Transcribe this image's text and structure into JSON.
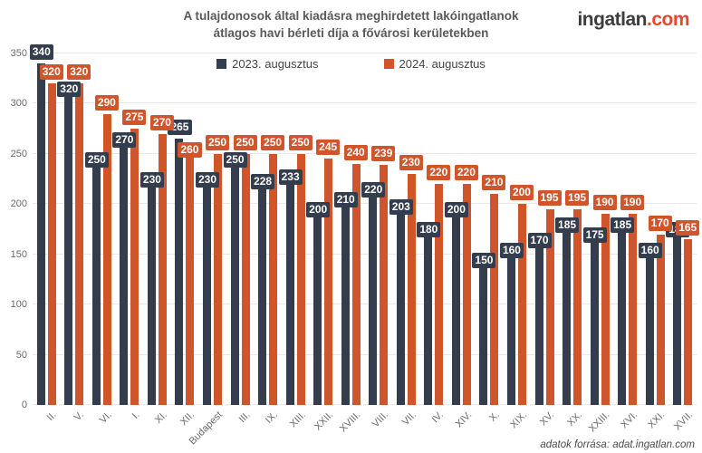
{
  "title": {
    "line1": "A tulajdonosok által kiadásra meghirdetett lakóingatlanok",
    "line2": "átlagos havi bérleti díja a fővárosi kerületekben"
  },
  "logo": {
    "name": "ingatlan",
    "tld": ".com"
  },
  "footer": {
    "source": "adatok forrása: adat.ingatlan.com"
  },
  "chart_data": {
    "type": "bar",
    "title": "A tulajdonosok által kiadásra meghirdetett lakóingatlanok átlagos havi bérleti díja a fővárosi kerületekben",
    "categories": [
      "II.",
      "V.",
      "VI.",
      "I.",
      "XI.",
      "XII.",
      "Budapest",
      "III.",
      "IX.",
      "XIII.",
      "XXII.",
      "XVIII.",
      "VIII.",
      "VII.",
      "IV.",
      "XIV.",
      "X.",
      "XIX.",
      "XV.",
      "XX.",
      "XXIII.",
      "XVI.",
      "XXI.",
      "XVII."
    ],
    "series": [
      {
        "name": "2023. augusztus",
        "color": "#333d4d",
        "values": [
          340,
          320,
          250,
          270,
          230,
          265,
          230,
          250,
          228,
          233,
          200,
          210,
          220,
          203,
          180,
          200,
          150,
          160,
          170,
          185,
          175,
          185,
          160,
          180
        ]
      },
      {
        "name": "2024. augusztus",
        "color": "#d0552b",
        "values": [
          320,
          320,
          290,
          275,
          270,
          260,
          250,
          250,
          250,
          250,
          245,
          240,
          239,
          230,
          220,
          220,
          210,
          200,
          195,
          195,
          190,
          190,
          170,
          165
        ]
      }
    ],
    "highlight_category": "Budapest",
    "highlight_index": 6,
    "ylim": [
      0,
      350
    ],
    "y_ticks": [
      0,
      50,
      100,
      150,
      200,
      250,
      300,
      350
    ],
    "grid": true,
    "legend_position": "top",
    "label_layout": {
      "dark_float": [
        0,
        5
      ],
      "orange_drop": [
        5
      ]
    }
  }
}
